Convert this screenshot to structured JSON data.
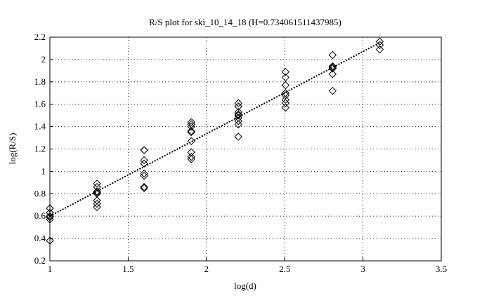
{
  "chart_data": {
    "type": "scatter",
    "title": "R/S plot for ski_10_14_18 (H=0.734061511437985)",
    "x_label": "log(d)",
    "y_label": "log(R/S)",
    "xlim": [
      1,
      3.5
    ],
    "ylim": [
      0.2,
      2.2
    ],
    "xticks": [
      1,
      1.5,
      2,
      2.5,
      3,
      3.5
    ],
    "yticks": [
      0.2,
      0.4,
      0.6,
      0.8,
      1,
      1.2,
      1.4,
      1.6,
      1.8,
      2,
      2.2
    ],
    "grid": true,
    "series": [
      {
        "marker": "diamond",
        "color": "#000000",
        "x": [
          1,
          1,
          1,
          1,
          1,
          1,
          1.301,
          1.301,
          1.301,
          1.301,
          1.301,
          1.301,
          1.301,
          1.301,
          1.602,
          1.602,
          1.602,
          1.602,
          1.602,
          1.602,
          1.602,
          1.602,
          1.903,
          1.903,
          1.903,
          1.903,
          1.903,
          1.903,
          1.903,
          1.903,
          1.903,
          2.204,
          2.204,
          2.204,
          2.204,
          2.204,
          2.204,
          2.204,
          2.204,
          2.204,
          2.505,
          2.505,
          2.505,
          2.505,
          2.505,
          2.505,
          2.505,
          2.505,
          2.806,
          2.806,
          2.806,
          2.806,
          2.806,
          2.806,
          3.107,
          3.107,
          3.107
        ],
        "values": [
          0.67,
          0.63,
          0.6,
          0.57,
          0.59,
          0.38,
          0.89,
          0.86,
          0.82,
          0.81,
          0.8,
          0.74,
          0.71,
          0.68,
          1.19,
          1.19,
          1.1,
          1.07,
          0.98,
          0.96,
          0.86,
          0.85,
          1.44,
          1.42,
          1.4,
          1.36,
          1.35,
          1.27,
          1.17,
          1.13,
          1.11,
          1.61,
          1.58,
          1.53,
          1.51,
          1.5,
          1.48,
          1.45,
          1.42,
          1.31,
          1.89,
          1.84,
          1.77,
          1.7,
          1.68,
          1.64,
          1.61,
          1.57,
          2.04,
          1.94,
          1.93,
          1.92,
          1.87,
          1.72,
          2.16,
          2.13,
          2.09
        ]
      },
      {
        "marker": "none",
        "line": "dotted",
        "color": "#000000",
        "x": [
          1,
          3.107
        ],
        "values": [
          0.6,
          2.15
        ]
      }
    ]
  }
}
